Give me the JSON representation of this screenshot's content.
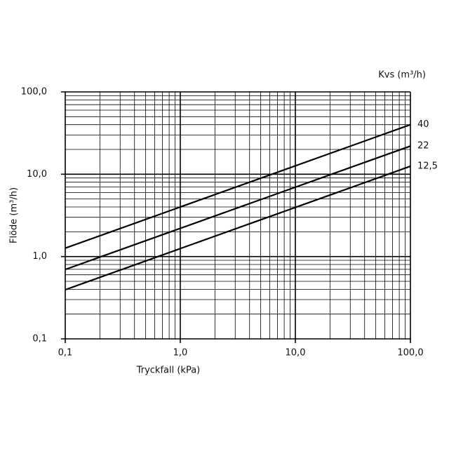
{
  "chart_data": {
    "type": "line",
    "xlabel": "Tryckfall (kPa)",
    "ylabel": "Flöde (m³/h)",
    "legend_title": "Kvs (m³/h)",
    "x": [
      0.1,
      100
    ],
    "series": [
      {
        "name": "40",
        "color": "#000000",
        "values": [
          1.265,
          40
        ]
      },
      {
        "name": "22",
        "color": "#000000",
        "values": [
          0.696,
          22
        ]
      },
      {
        "name": "12,5",
        "color": "#000000",
        "values": [
          0.395,
          12.5
        ]
      }
    ],
    "xlim": [
      0.1,
      100
    ],
    "ylim": [
      0.1,
      100
    ],
    "xticks": [
      {
        "value": 0.1,
        "label": "0,1"
      },
      {
        "value": 1,
        "label": "1,0"
      },
      {
        "value": 10,
        "label": "10,0"
      },
      {
        "value": 100,
        "label": "100,0"
      }
    ],
    "yticks": [
      {
        "value": 0.1,
        "label": "0,1"
      },
      {
        "value": 1,
        "label": "1,0"
      },
      {
        "value": 10,
        "label": "10,0"
      },
      {
        "value": 100,
        "label": "100,0"
      }
    ],
    "xscale": "log",
    "yscale": "log",
    "grid": true,
    "minor_grid": true
  }
}
